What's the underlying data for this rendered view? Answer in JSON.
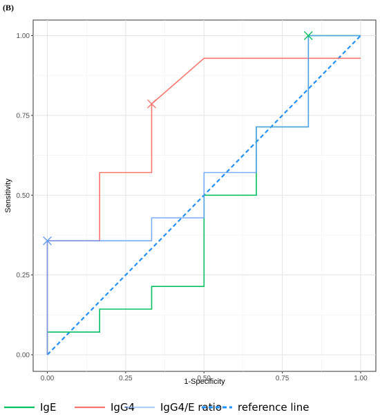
{
  "panel_label": "(B)",
  "chart_data": {
    "type": "line",
    "title": "",
    "xlabel": "1-Specificity",
    "ylabel": "Sensitivity",
    "xlim": [
      -0.05,
      1.05
    ],
    "ylim": [
      -0.05,
      1.05
    ],
    "x_ticks": [
      0.0,
      0.25,
      0.5,
      0.75,
      1.0
    ],
    "x_tick_labels": [
      "0.00",
      "0.25",
      "0.50",
      "0.75",
      "1.00"
    ],
    "y_ticks": [
      0.0,
      0.25,
      0.5,
      0.75,
      1.0
    ],
    "y_tick_labels": [
      "0.00",
      "0.25",
      "0.50",
      "0.75",
      "1.00"
    ],
    "grid": true,
    "legend_position": "bottom",
    "series": [
      {
        "name": "IgE",
        "color": "#00c060",
        "style": "step",
        "points": [
          [
            0,
            0
          ],
          [
            0,
            0.071
          ],
          [
            0.167,
            0.071
          ],
          [
            0.167,
            0.143
          ],
          [
            0.333,
            0.143
          ],
          [
            0.333,
            0.214
          ],
          [
            0.5,
            0.214
          ],
          [
            0.5,
            0.5
          ],
          [
            0.667,
            0.5
          ],
          [
            0.667,
            0.714
          ],
          [
            0.833,
            0.714
          ],
          [
            0.833,
            1.0
          ],
          [
            1.0,
            1.0
          ]
        ],
        "marker": [
          0.833,
          1.0
        ]
      },
      {
        "name": "IgG4",
        "color": "#f8766d",
        "style": "step",
        "points": [
          [
            0,
            0
          ],
          [
            0,
            0.357
          ],
          [
            0.167,
            0.357
          ],
          [
            0.167,
            0.571
          ],
          [
            0.333,
            0.571
          ],
          [
            0.333,
            0.786
          ],
          [
            0.5,
            0.929
          ],
          [
            1.0,
            0.929
          ]
        ],
        "marker": [
          0.333,
          0.786
        ]
      },
      {
        "name": "IgG4/E ratio",
        "color": "#619cff",
        "style": "step",
        "points": [
          [
            0,
            0
          ],
          [
            0,
            0.357
          ],
          [
            0.333,
            0.357
          ],
          [
            0.333,
            0.429
          ],
          [
            0.5,
            0.429
          ],
          [
            0.5,
            0.571
          ],
          [
            0.667,
            0.571
          ],
          [
            0.667,
            0.714
          ],
          [
            0.833,
            0.714
          ],
          [
            0.833,
            1.0
          ],
          [
            1.0,
            1.0
          ]
        ],
        "marker": [
          0.0,
          0.357
        ]
      },
      {
        "name": "reference line",
        "color": "#1e90ff",
        "style": "dashed",
        "points": [
          [
            0,
            0
          ],
          [
            1,
            1
          ]
        ]
      }
    ]
  }
}
